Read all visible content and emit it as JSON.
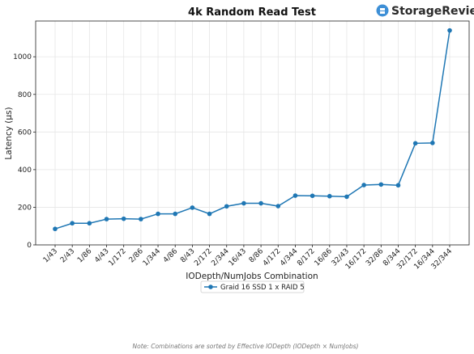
{
  "brand": {
    "name": "StorageReview",
    "color": "#3d8fd6",
    "icon": "storagereview-logo-icon"
  },
  "note": "Note: Combinations are sorted by Effective IODepth (IODepth × NumJobs)",
  "chart_data": {
    "type": "line",
    "title": "4k Random Read Test",
    "xlabel": "IODepth/NumJobs Combination",
    "ylabel": "Latency (µs)",
    "ylim": [
      0,
      1190
    ],
    "yticks": [
      0,
      200,
      400,
      600,
      800,
      1000
    ],
    "grid": true,
    "legend_position": "bottom-center",
    "categories": [
      "1/43",
      "2/43",
      "1/86",
      "4/43",
      "1/172",
      "2/86",
      "1/344",
      "4/86",
      "8/43",
      "2/172",
      "2/344",
      "16/43",
      "8/86",
      "4/172",
      "4/344",
      "8/172",
      "16/86",
      "32/43",
      "16/172",
      "32/86",
      "8/344",
      "32/172",
      "16/344",
      "32/344"
    ],
    "series": [
      {
        "name": "Graid 16 SSD 1 x RAID 5",
        "color": "#1f77b4",
        "values": [
          85,
          115,
          115,
          137,
          139,
          137,
          165,
          165,
          198,
          165,
          205,
          221,
          221,
          206,
          262,
          261,
          259,
          256,
          318,
          321,
          317,
          540,
          542,
          1140
        ]
      }
    ]
  }
}
